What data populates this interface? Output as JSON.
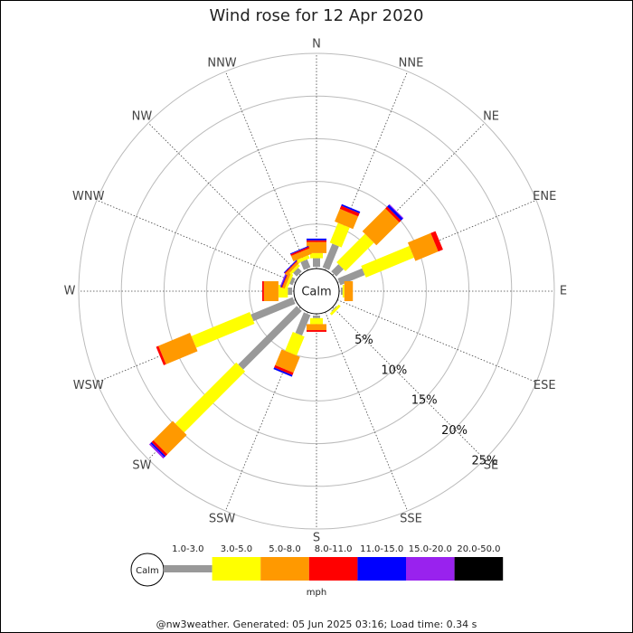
{
  "chart_data": {
    "type": "windrose",
    "title": "Wind rose for 12 Apr 2020",
    "categories": [
      "N",
      "NNE",
      "NE",
      "ENE",
      "E",
      "ESE",
      "SE",
      "SSE",
      "S",
      "SSW",
      "SW",
      "WSW",
      "W",
      "WNW",
      "NW",
      "NNW"
    ],
    "center_label": "Calm",
    "unit": "mph",
    "rlim": [
      0,
      25
    ],
    "rticks": [
      {
        "value": 5,
        "label": "5%"
      },
      {
        "value": 10,
        "label": "10%"
      },
      {
        "value": 15,
        "label": "15%"
      },
      {
        "value": 20,
        "label": "20%"
      },
      {
        "value": 25,
        "label": "25%"
      }
    ],
    "series": [
      {
        "name": "1.0-3.0",
        "color": "#999999",
        "values": [
          1.0,
          3.0,
          1.2,
          3.1,
          0.2,
          0,
          0.1,
          0,
          0.3,
          2.6,
          9.7,
          5.3,
          0.5,
          0.4,
          0.6,
          1.0
        ]
      },
      {
        "name": "3.0-5.0",
        "color": "#ffff00",
        "values": [
          0.6,
          2.5,
          4.7,
          6.1,
          0.2,
          0,
          0.3,
          0,
          0.7,
          2.4,
          10.1,
          7.4,
          1.1,
          0.3,
          0.3,
          0.4
        ]
      },
      {
        "name": "5.0-8.0",
        "color": "#ff9900",
        "values": [
          1.3,
          1.6,
          3.8,
          2.9,
          1.0,
          0,
          0,
          0,
          0.7,
          2.0,
          3.2,
          4.0,
          1.7,
          0.3,
          0.3,
          0.7
        ]
      },
      {
        "name": "8.0-11.0",
        "color": "#ff0000",
        "values": [
          0.2,
          0.4,
          0.3,
          0.6,
          0,
          0,
          0,
          0,
          0.2,
          0.3,
          0.3,
          0.3,
          0.2,
          0.1,
          0.1,
          0.2
        ]
      },
      {
        "name": "11.0-15.0",
        "color": "#0000ff",
        "values": [
          0.2,
          0.2,
          0.3,
          0,
          0,
          0,
          0,
          0,
          0,
          0.2,
          0.2,
          0,
          0,
          0.1,
          0.1,
          0.1
        ]
      },
      {
        "name": "15.0-20.0",
        "color": "#9922ee",
        "values": [
          0,
          0,
          0.1,
          0,
          0,
          0,
          0,
          0,
          0,
          0,
          0.2,
          0,
          0,
          0.1,
          0,
          0
        ]
      },
      {
        "name": "20.0-50.0",
        "color": "#000000",
        "values": [
          0,
          0,
          0,
          0,
          0,
          0,
          0,
          0,
          0,
          0,
          0,
          0,
          0,
          0,
          0,
          0
        ]
      }
    ]
  },
  "footer": "@nw3weather. Generated: 05 Jun 2025 03:16; Load time: 0.34 s"
}
